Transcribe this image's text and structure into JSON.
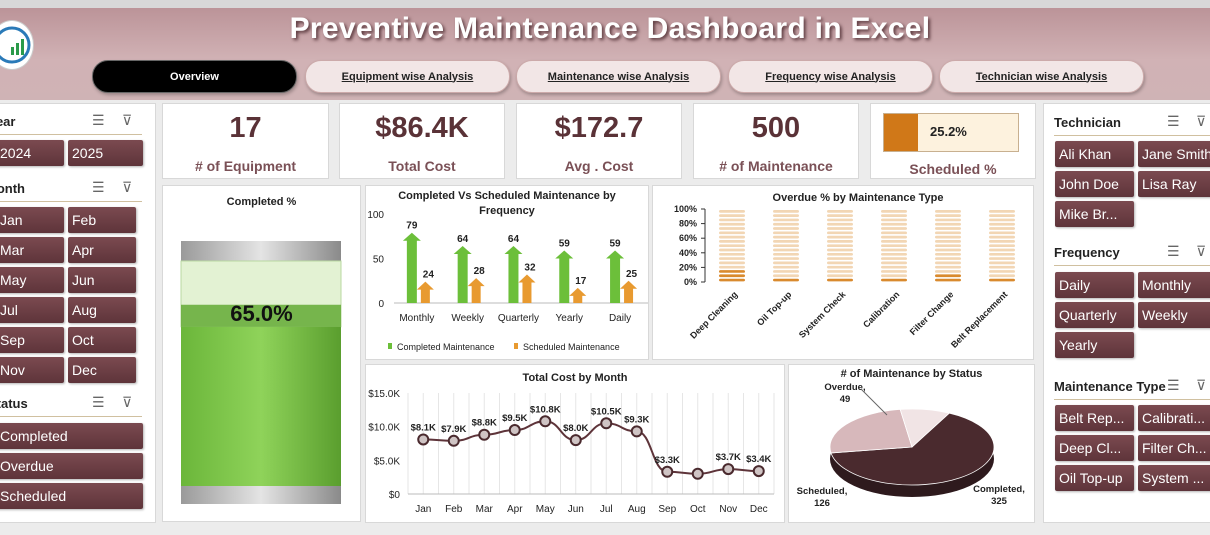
{
  "header": {
    "title": "Preventive Maintenance Dashboard in Excel"
  },
  "tabs": [
    {
      "label": "Overview",
      "active": true
    },
    {
      "label": "Equipment wise Analysis"
    },
    {
      "label": "Maintenance wise Analysis"
    },
    {
      "label": "Frequency  wise Analysis"
    },
    {
      "label": "Technician  wise Analysis"
    }
  ],
  "slicers_left": {
    "year": {
      "title": "Year",
      "items": [
        "2024",
        "2025"
      ]
    },
    "month": {
      "title": "Month",
      "items": [
        "Jan",
        "Feb",
        "Mar",
        "Apr",
        "May",
        "Jun",
        "Jul",
        "Aug",
        "Sep",
        "Oct",
        "Nov",
        "Dec"
      ]
    },
    "status": {
      "title": "Status",
      "items": [
        "Completed",
        "Overdue",
        "Scheduled"
      ]
    }
  },
  "slicers_right": {
    "technician": {
      "title": "Technician",
      "items": [
        "Ali Khan",
        "Jane Smith",
        "John Doe",
        "Lisa Ray",
        "Mike Br..."
      ]
    },
    "frequency": {
      "title": "Frequency",
      "items": [
        "Daily",
        "Monthly",
        "Quarterly",
        "Weekly",
        "Yearly"
      ]
    },
    "maintenance_type": {
      "title": "Maintenance Type",
      "items": [
        "Belt Rep...",
        "Calibrati...",
        "Deep Cl...",
        "Filter Ch...",
        "Oil Top-up",
        "System ..."
      ]
    }
  },
  "kpis": {
    "equipment": {
      "value": "17",
      "label": "# of Equipment"
    },
    "total_cost": {
      "value": "$86.4K",
      "label": "Total Cost"
    },
    "avg_cost": {
      "value": "$172.7",
      "label": "Avg . Cost"
    },
    "maintenance": {
      "value": "500",
      "label": "# of Maintenance"
    },
    "scheduled": {
      "value": "25.2%",
      "label": "Scheduled %",
      "fraction": 0.252
    }
  },
  "colors": {
    "accent": "#5e343a",
    "green": "#7dc242",
    "orange": "#e8962e",
    "brown": "#4a2a2e"
  },
  "chart_data": [
    {
      "type": "bar",
      "title": "Completed %",
      "values": [
        65.0
      ],
      "value_label": "65.0%",
      "ylim": [
        0,
        100
      ]
    },
    {
      "type": "bar",
      "title": "Completed Vs Scheduled Maintenance by Frequency",
      "categories": [
        "Monthly",
        "Weekly",
        "Quarterly",
        "Yearly",
        "Daily"
      ],
      "series": [
        {
          "name": "Completed Maintenance",
          "values": [
            79,
            64,
            64,
            59,
            59
          ]
        },
        {
          "name": "Scheduled Maintenance",
          "values": [
            24,
            28,
            32,
            17,
            25
          ]
        }
      ],
      "ylim": [
        0,
        100
      ],
      "yticks": [
        "0",
        "50",
        "100"
      ],
      "legend": "bottom"
    },
    {
      "type": "bar",
      "title": "Overdue % by Maintenance Type",
      "categories": [
        "Deep Cleaning",
        "Oil Top-up",
        "System Check",
        "Calibration",
        "Filter Change",
        "Belt Replacement"
      ],
      "values": [
        0.16,
        0.07,
        0.06,
        0.08,
        0.09,
        0.06
      ],
      "ylim": [
        0,
        1
      ],
      "yticks": [
        "0%",
        "20%",
        "40%",
        "60%",
        "80%",
        "100%"
      ]
    },
    {
      "type": "line",
      "title": "Total Cost by Month",
      "categories": [
        "Jan",
        "Feb",
        "Mar",
        "Apr",
        "May",
        "Jun",
        "Jul",
        "Aug",
        "Sep",
        "Oct",
        "Nov",
        "Dec"
      ],
      "values": [
        8.1,
        7.9,
        8.8,
        9.5,
        10.8,
        8.0,
        10.5,
        9.3,
        3.3,
        3.0,
        3.7,
        3.4
      ],
      "data_labels": [
        "$8.1K",
        "$7.9K",
        "$8.8K",
        "$9.5K",
        "$10.8K",
        "$8.0K",
        "$10.5K",
        "$9.3K",
        "$3.3K",
        "",
        "$3.7K",
        "$3.4K"
      ],
      "ylim": [
        0,
        15
      ],
      "yticks": [
        "$0",
        "$5.0K",
        "$10.0K",
        "$15.0K"
      ]
    },
    {
      "type": "pie",
      "title": "# of Maintenance by Status",
      "categories": [
        "Completed",
        "Scheduled",
        "Overdue"
      ],
      "values": [
        325,
        126,
        49
      ],
      "labels": [
        "Completed,\n325",
        "Scheduled,\n126",
        "Overdue,\n49"
      ]
    }
  ]
}
